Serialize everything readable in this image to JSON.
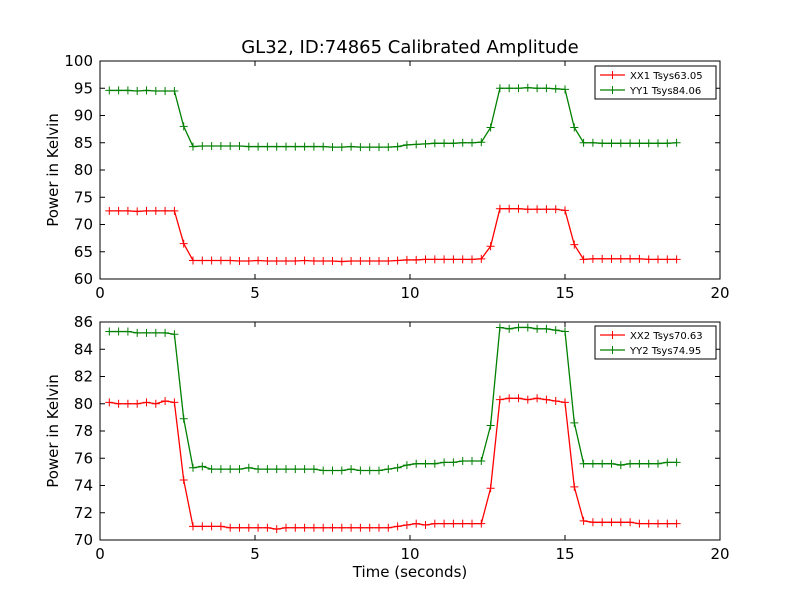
{
  "figure_title": "GL32, ID:74865 Calibrated Amplitude",
  "chart_data": [
    {
      "type": "line",
      "title": "GL32, ID:74865 Calibrated Amplitude",
      "xlabel": "",
      "ylabel": "Power in Kelvin",
      "xlim": [
        0,
        20
      ],
      "ylim": [
        60,
        100
      ],
      "xticks": [
        "0",
        "5",
        "10",
        "15",
        "20"
      ],
      "yticks": [
        "60",
        "65",
        "70",
        "75",
        "80",
        "85",
        "90",
        "95",
        "100"
      ],
      "legend_position": "top-right",
      "grid": false,
      "x": [
        0.3,
        0.6,
        0.9,
        1.2,
        1.5,
        1.8,
        2.1,
        2.4,
        2.7,
        3.0,
        3.3,
        3.6,
        3.9,
        4.2,
        4.5,
        4.8,
        5.1,
        5.4,
        5.7,
        6.0,
        6.3,
        6.6,
        6.9,
        7.2,
        7.5,
        7.8,
        8.1,
        8.4,
        8.7,
        9.0,
        9.3,
        9.6,
        9.9,
        10.2,
        10.5,
        10.8,
        11.1,
        11.4,
        11.7,
        12.0,
        12.3,
        12.6,
        12.9,
        13.2,
        13.5,
        13.8,
        14.1,
        14.4,
        14.7,
        15.0,
        15.3,
        15.6,
        15.9,
        16.2,
        16.5,
        16.8,
        17.1,
        17.4,
        17.7,
        18.0,
        18.3,
        18.6
      ],
      "series": [
        {
          "name": "XX1 Tsys63.05",
          "color": "#ff0000",
          "values": [
            72.5,
            72.5,
            72.5,
            72.4,
            72.5,
            72.5,
            72.5,
            72.5,
            66.5,
            63.4,
            63.4,
            63.4,
            63.4,
            63.4,
            63.3,
            63.3,
            63.4,
            63.3,
            63.3,
            63.3,
            63.3,
            63.4,
            63.3,
            63.3,
            63.3,
            63.2,
            63.3,
            63.3,
            63.3,
            63.3,
            63.3,
            63.4,
            63.5,
            63.5,
            63.6,
            63.6,
            63.6,
            63.6,
            63.6,
            63.6,
            63.7,
            66.0,
            72.9,
            72.9,
            72.9,
            72.8,
            72.8,
            72.8,
            72.8,
            72.6,
            66.3,
            63.6,
            63.7,
            63.7,
            63.7,
            63.7,
            63.7,
            63.7,
            63.6,
            63.6,
            63.6,
            63.6
          ]
        },
        {
          "name": "YY1 Tsys84.06",
          "color": "#008000",
          "values": [
            94.6,
            94.6,
            94.6,
            94.5,
            94.6,
            94.5,
            94.5,
            94.5,
            88.0,
            84.3,
            84.4,
            84.4,
            84.4,
            84.4,
            84.4,
            84.3,
            84.3,
            84.3,
            84.3,
            84.3,
            84.3,
            84.3,
            84.3,
            84.3,
            84.2,
            84.2,
            84.3,
            84.2,
            84.2,
            84.2,
            84.2,
            84.3,
            84.6,
            84.7,
            84.8,
            84.9,
            84.9,
            84.9,
            85.0,
            85.0,
            85.1,
            87.8,
            95.0,
            95.0,
            95.0,
            95.1,
            95.0,
            95.0,
            94.9,
            94.8,
            87.8,
            85.0,
            85.0,
            84.9,
            84.9,
            84.9,
            84.9,
            84.9,
            84.9,
            84.9,
            84.9,
            85.0
          ]
        }
      ]
    },
    {
      "type": "line",
      "title": "",
      "xlabel": "Time (seconds)",
      "ylabel": "Power in Kelvin",
      "xlim": [
        0,
        20
      ],
      "ylim": [
        70,
        86
      ],
      "xticks": [
        "0",
        "5",
        "10",
        "15",
        "20"
      ],
      "yticks": [
        "70",
        "72",
        "74",
        "76",
        "78",
        "80",
        "82",
        "84",
        "86"
      ],
      "legend_position": "top-right",
      "grid": false,
      "x": [
        0.3,
        0.6,
        0.9,
        1.2,
        1.5,
        1.8,
        2.1,
        2.4,
        2.7,
        3.0,
        3.3,
        3.6,
        3.9,
        4.2,
        4.5,
        4.8,
        5.1,
        5.4,
        5.7,
        6.0,
        6.3,
        6.6,
        6.9,
        7.2,
        7.5,
        7.8,
        8.1,
        8.4,
        8.7,
        9.0,
        9.3,
        9.6,
        9.9,
        10.2,
        10.5,
        10.8,
        11.1,
        11.4,
        11.7,
        12.0,
        12.3,
        12.6,
        12.9,
        13.2,
        13.5,
        13.8,
        14.1,
        14.4,
        14.7,
        15.0,
        15.3,
        15.6,
        15.9,
        16.2,
        16.5,
        16.8,
        17.1,
        17.4,
        17.7,
        18.0,
        18.3,
        18.6
      ],
      "series": [
        {
          "name": "XX2 Tsys70.63",
          "color": "#ff0000",
          "values": [
            80.1,
            80.0,
            80.0,
            80.0,
            80.1,
            80.0,
            80.2,
            80.1,
            74.4,
            71.0,
            71.0,
            71.0,
            71.0,
            70.9,
            70.9,
            70.9,
            70.9,
            70.9,
            70.8,
            70.9,
            70.9,
            70.9,
            70.9,
            70.9,
            70.9,
            70.9,
            70.9,
            70.9,
            70.9,
            70.9,
            70.9,
            71.0,
            71.1,
            71.2,
            71.1,
            71.2,
            71.2,
            71.2,
            71.2,
            71.2,
            71.2,
            73.8,
            80.3,
            80.4,
            80.4,
            80.3,
            80.4,
            80.3,
            80.2,
            80.1,
            73.9,
            71.4,
            71.3,
            71.3,
            71.3,
            71.3,
            71.3,
            71.2,
            71.2,
            71.2,
            71.2,
            71.2
          ]
        },
        {
          "name": "YY2 Tsys74.95",
          "color": "#008000",
          "values": [
            85.3,
            85.3,
            85.3,
            85.2,
            85.2,
            85.2,
            85.2,
            85.1,
            78.9,
            75.3,
            75.4,
            75.2,
            75.2,
            75.2,
            75.2,
            75.3,
            75.2,
            75.2,
            75.2,
            75.2,
            75.2,
            75.2,
            75.2,
            75.1,
            75.1,
            75.1,
            75.2,
            75.1,
            75.1,
            75.1,
            75.2,
            75.3,
            75.5,
            75.6,
            75.6,
            75.6,
            75.7,
            75.7,
            75.8,
            75.8,
            75.8,
            78.4,
            85.6,
            85.5,
            85.6,
            85.6,
            85.5,
            85.5,
            85.4,
            85.3,
            78.6,
            75.6,
            75.6,
            75.6,
            75.6,
            75.5,
            75.6,
            75.6,
            75.6,
            75.6,
            75.7,
            75.7
          ]
        }
      ]
    }
  ]
}
